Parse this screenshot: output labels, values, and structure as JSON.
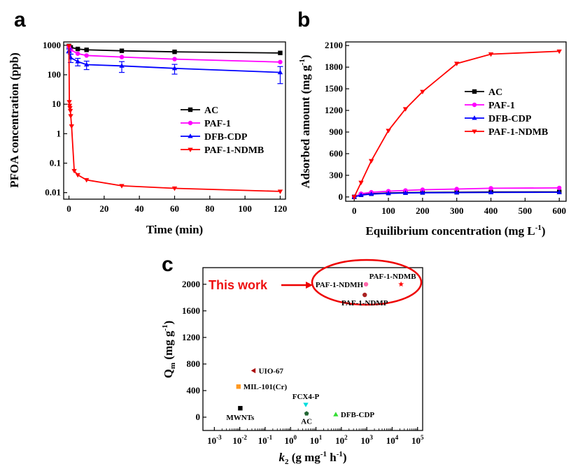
{
  "panels": {
    "a": "a",
    "b": "b",
    "c": "c"
  },
  "colors": {
    "AC": "#000000",
    "PAF-1": "#ff00ff",
    "DFB-CDP": "#0000ff",
    "PAF-1-NDMB": "#ff0000"
  },
  "chart_data": [
    {
      "type": "line",
      "panel": "a",
      "xlabel": "Time (min)",
      "ylabel": "PFOA concentration (ppb)",
      "yscale": "log",
      "xlim": [
        -3,
        123
      ],
      "ylim": [
        0.006,
        1300
      ],
      "xticks": [
        0,
        20,
        40,
        60,
        80,
        100,
        120
      ],
      "yticks": [
        {
          "v": 1000,
          "label": "1000"
        },
        {
          "v": 100,
          "label": "100"
        },
        {
          "v": 10,
          "label": "10"
        },
        {
          "v": 1,
          "label": "1"
        },
        {
          "v": 0.1,
          "label": "0.1"
        },
        {
          "v": 0.01,
          "label": "0.01"
        }
      ],
      "legend_position": "center-right",
      "series": [
        {
          "name": "AC",
          "color": "#000000",
          "marker": "square",
          "x": [
            0,
            1,
            5,
            10,
            30,
            60,
            120
          ],
          "y": [
            950,
            850,
            750,
            700,
            650,
            600,
            550
          ]
        },
        {
          "name": "PAF-1",
          "color": "#ff00ff",
          "marker": "circle",
          "x": [
            0,
            1,
            5,
            10,
            30,
            60,
            120
          ],
          "y": [
            900,
            700,
            520,
            450,
            400,
            340,
            270
          ]
        },
        {
          "name": "DFB-CDP",
          "color": "#0000ff",
          "marker": "triangle-up",
          "x": [
            0,
            1,
            5,
            10,
            30,
            60,
            120
          ],
          "y": [
            650,
            380,
            280,
            220,
            200,
            165,
            120
          ],
          "err": [
            100,
            120,
            80,
            70,
            80,
            60,
            70
          ]
        },
        {
          "name": "PAF-1-NDMB",
          "color": "#ff0000",
          "marker": "triangle-down",
          "x": [
            0,
            0.2,
            0.4,
            0.6,
            0.8,
            1,
            1.5,
            3,
            5,
            10,
            30,
            60,
            120
          ],
          "y": [
            950,
            12,
            9,
            7.5,
            6,
            4,
            1.8,
            0.055,
            0.04,
            0.027,
            0.017,
            0.014,
            0.011
          ]
        }
      ]
    },
    {
      "type": "line",
      "panel": "b",
      "xlabel": "Equilibrium concentration (mg L",
      "xlabel_sup": "-1",
      "xlabel_end": ")",
      "ylabel": "Adsorbed amount (mg g",
      "ylabel_sup": "-1",
      "ylabel_end": ")",
      "xlim": [
        -25,
        620
      ],
      "ylim": [
        -60,
        2150
      ],
      "xticks": [
        0,
        100,
        200,
        300,
        400,
        500,
        600
      ],
      "yticks": [
        0,
        300,
        600,
        900,
        1200,
        1500,
        1800,
        2100
      ],
      "legend_position": "center-right",
      "series": [
        {
          "name": "AC",
          "color": "#000000",
          "marker": "square",
          "x": [
            0,
            20,
            50,
            100,
            150,
            200,
            300,
            400,
            600
          ],
          "y": [
            0,
            30,
            45,
            55,
            60,
            62,
            65,
            68,
            70
          ]
        },
        {
          "name": "PAF-1",
          "color": "#ff00ff",
          "marker": "circle",
          "x": [
            0,
            20,
            50,
            100,
            150,
            200,
            300,
            400,
            600
          ],
          "y": [
            0,
            45,
            65,
            80,
            90,
            100,
            110,
            120,
            125
          ]
        },
        {
          "name": "DFB-CDP",
          "color": "#0000ff",
          "marker": "triangle-up",
          "x": [
            0,
            20,
            50,
            100,
            150,
            200,
            300,
            400,
            600
          ],
          "y": [
            0,
            25,
            40,
            50,
            55,
            58,
            60,
            62,
            65
          ]
        },
        {
          "name": "PAF-1-NDMB",
          "color": "#ff0000",
          "marker": "triangle-down",
          "x": [
            0,
            20,
            50,
            100,
            150,
            200,
            300,
            400,
            600
          ],
          "y": [
            0,
            200,
            500,
            920,
            1220,
            1460,
            1850,
            1980,
            2020
          ]
        }
      ]
    },
    {
      "type": "scatter",
      "panel": "c",
      "xlabel": "k",
      "xlabel_sub": "2",
      "xlabel_rest": " (g mg",
      "xlabel_sup1": "-1",
      "xlabel_mid": " h",
      "xlabel_sup2": "-1",
      "xlabel_end": ")",
      "ylabel": "Q",
      "ylabel_sub": "m",
      "ylabel_rest": " (mg g",
      "ylabel_sup": "-1",
      "ylabel_end": ")",
      "xscale": "log",
      "xlim_exp": [
        -3.45,
        5.2
      ],
      "ylim": [
        -200,
        2250
      ],
      "xtick_exps": [
        -3,
        -2,
        -1,
        0,
        1,
        2,
        3,
        4,
        5
      ],
      "yticks": [
        0,
        400,
        800,
        1200,
        1600,
        2000
      ],
      "callout": "This work",
      "points": [
        {
          "label": "PAF-1-NDMB",
          "kexp": 4.35,
          "q": 2000,
          "marker": "star",
          "color": "#ff0000",
          "label_color": "#ff0000",
          "label_pos": "above"
        },
        {
          "label": "PAF-1-NDMH",
          "kexp": 2.97,
          "q": 2000,
          "marker": "circle",
          "color": "#ff66aa",
          "label_color": "#000000",
          "label_pos": "left"
        },
        {
          "label": "PAF-1-NDMP",
          "kexp": 2.92,
          "q": 1840,
          "marker": "circle",
          "color": "#aa2222",
          "label_color": "#000000",
          "label_pos": "below"
        },
        {
          "label": "UIO-67",
          "kexp": -1.45,
          "q": 700,
          "marker": "triangle-left",
          "color": "#aa0000",
          "label_color": "#000000",
          "label_pos": "right"
        },
        {
          "label": "MIL-101(Cr)",
          "kexp": -2.05,
          "q": 460,
          "marker": "square",
          "color": "#ff9922",
          "label_color": "#000000",
          "label_pos": "right"
        },
        {
          "label": "MWNTs",
          "kexp": -1.98,
          "q": 135,
          "marker": "square",
          "color": "#000000",
          "label_color": "#000000",
          "label_pos": "below"
        },
        {
          "label": "FCX4-P",
          "kexp": 0.6,
          "q": 190,
          "marker": "triangle-down",
          "color": "#00dddd",
          "label_color": "#000000",
          "label_pos": "above"
        },
        {
          "label": "AC",
          "kexp": 0.63,
          "q": 55,
          "marker": "pentagon",
          "color": "#226633",
          "label_color": "#000000",
          "label_pos": "below"
        },
        {
          "label": "DFB-CDP",
          "kexp": 1.78,
          "q": 40,
          "marker": "triangle-up",
          "color": "#33dd33",
          "label_color": "#ff0000",
          "label_pos": "right"
        }
      ]
    }
  ]
}
